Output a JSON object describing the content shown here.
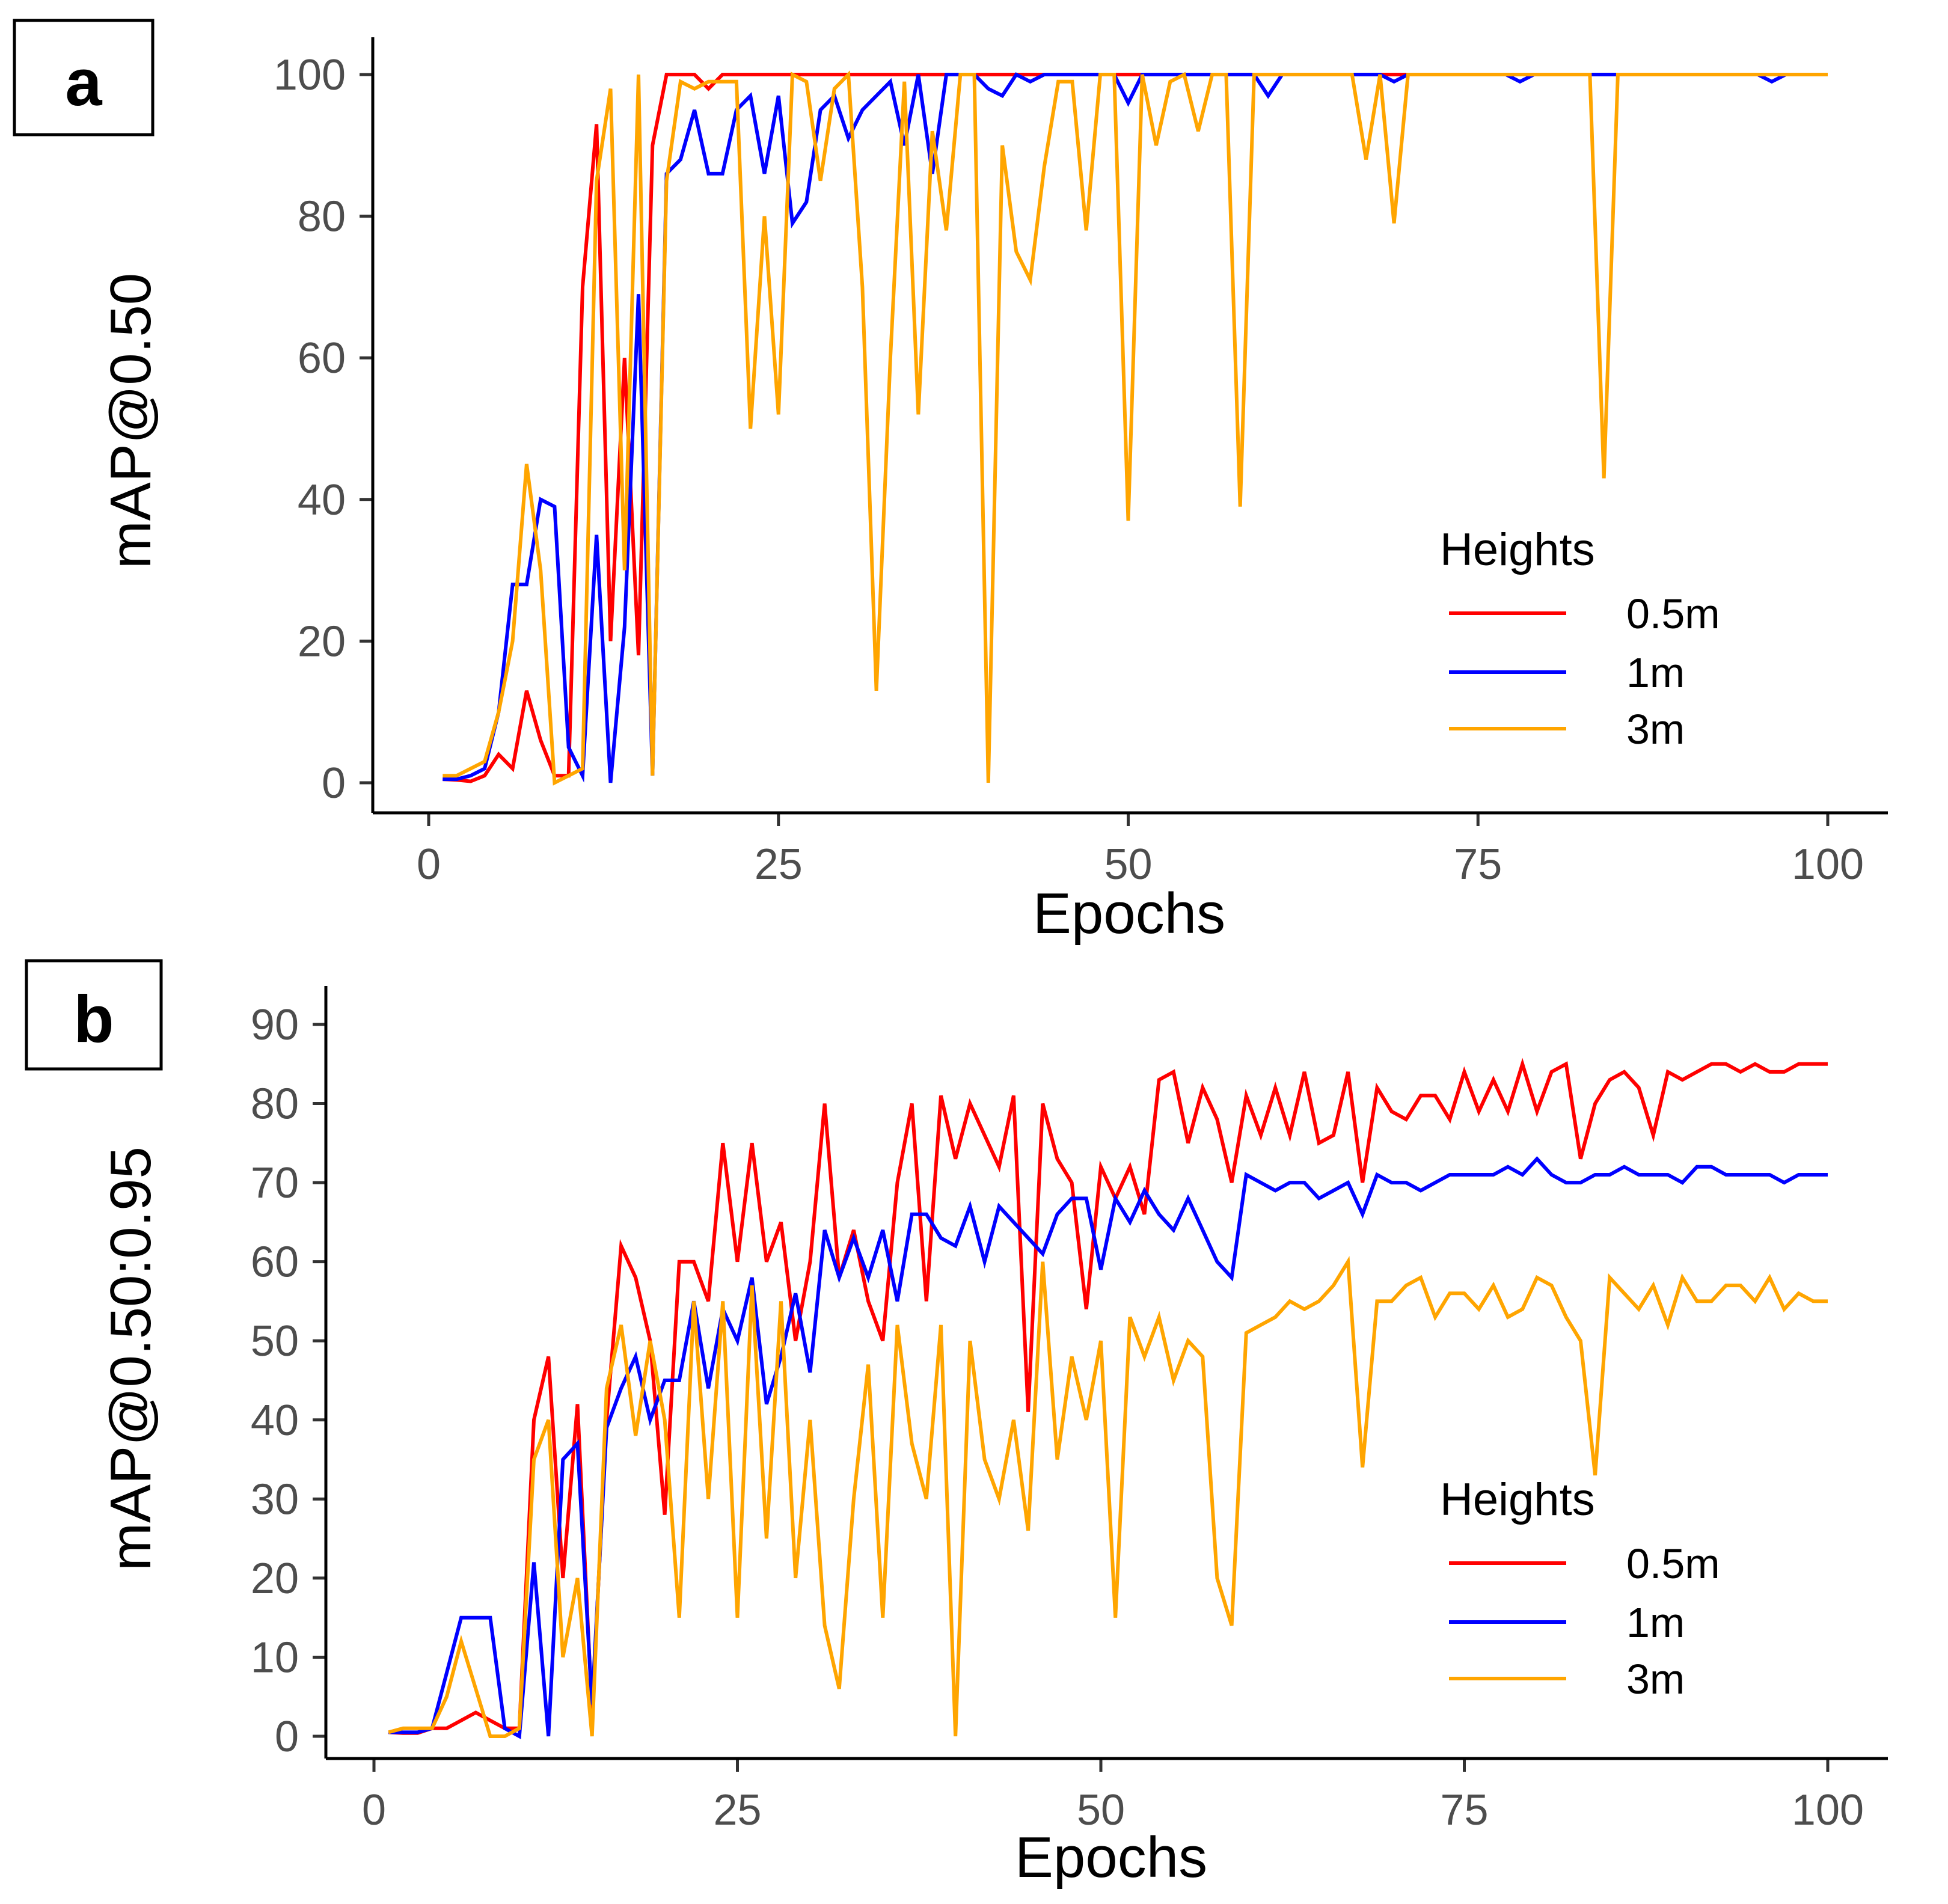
{
  "chart_data": [
    {
      "type": "line",
      "panel_label": "a",
      "xlabel": "Epochs",
      "ylabel": "mAP@0.50",
      "xlim": [
        0,
        100
      ],
      "ylim": [
        0,
        100
      ],
      "xticks": [
        0,
        25,
        50,
        75,
        100
      ],
      "yticks": [
        0,
        20,
        40,
        60,
        80,
        100
      ],
      "grid": false,
      "legend_title": "Heights",
      "legend_position": "bottom-right",
      "x": [
        1,
        2,
        3,
        4,
        5,
        6,
        7,
        8,
        9,
        10,
        11,
        12,
        13,
        14,
        15,
        16,
        17,
        18,
        19,
        20,
        21,
        22,
        23,
        24,
        25,
        26,
        27,
        28,
        29,
        30,
        31,
        32,
        33,
        34,
        35,
        36,
        37,
        38,
        39,
        40,
        41,
        42,
        43,
        44,
        45,
        46,
        47,
        48,
        49,
        50,
        51,
        52,
        53,
        54,
        55,
        56,
        57,
        58,
        59,
        60,
        61,
        62,
        63,
        64,
        65,
        66,
        67,
        68,
        69,
        70,
        71,
        72,
        73,
        74,
        75,
        76,
        77,
        78,
        79,
        80,
        81,
        82,
        83,
        84,
        85,
        86,
        87,
        88,
        89,
        90,
        91,
        92,
        93,
        94,
        95,
        96,
        97,
        98,
        99,
        100
      ],
      "series": [
        {
          "name": "0.5m",
          "color": "#ff0000",
          "values": [
            0.5,
            0.4,
            0.2,
            1,
            4,
            2,
            13,
            6,
            1,
            1,
            70,
            93,
            20,
            60,
            18,
            90,
            100,
            100,
            100,
            98,
            100,
            100,
            100,
            100,
            100,
            100,
            100,
            100,
            100,
            100,
            100,
            100,
            100,
            100,
            100,
            100,
            100,
            100,
            100,
            100,
            100,
            100,
            100,
            100,
            100,
            100,
            100,
            100,
            100,
            100,
            100,
            100,
            100,
            100,
            100,
            100,
            100,
            100,
            100,
            100,
            100,
            100,
            100,
            100,
            100,
            100,
            100,
            100,
            100,
            100,
            100,
            100,
            100,
            100,
            100,
            100,
            100,
            100,
            100,
            100,
            100,
            100,
            100,
            100,
            100,
            100,
            100,
            100,
            100,
            100,
            100,
            100,
            100,
            100,
            100,
            100,
            100,
            100,
            100,
            100
          ]
        },
        {
          "name": "1m",
          "color": "#0000ff",
          "values": [
            0.5,
            0.5,
            1,
            2,
            10,
            28,
            28,
            40,
            39,
            5,
            1,
            35,
            0,
            22,
            69,
            1,
            86,
            88,
            95,
            86,
            86,
            95,
            97,
            86,
            97,
            79,
            82,
            95,
            97,
            91,
            95,
            97,
            99,
            90,
            100,
            86,
            100,
            100,
            100,
            98,
            97,
            100,
            99,
            100,
            100,
            100,
            100,
            100,
            100,
            96,
            100,
            100,
            100,
            100,
            100,
            100,
            100,
            100,
            100,
            97,
            100,
            100,
            100,
            100,
            100,
            100,
            100,
            100,
            99,
            100,
            100,
            100,
            100,
            100,
            100,
            100,
            100,
            99,
            100,
            100,
            100,
            100,
            100,
            100,
            100,
            100,
            100,
            100,
            100,
            100,
            100,
            100,
            100,
            100,
            100,
            99,
            100,
            100,
            100,
            100
          ]
        },
        {
          "name": "3m",
          "color": "#ffa500",
          "values": [
            1,
            1,
            2,
            3,
            10,
            20,
            45,
            30,
            0,
            1,
            2,
            85,
            98,
            30,
            100,
            1,
            85,
            99,
            98,
            99,
            99,
            99,
            50,
            80,
            52,
            100,
            99,
            85,
            98,
            100,
            70,
            13,
            60,
            99,
            52,
            92,
            78,
            100,
            100,
            0,
            90,
            75,
            71,
            87,
            99,
            99,
            78,
            100,
            100,
            37,
            100,
            90,
            99,
            100,
            92,
            100,
            100,
            39,
            100,
            100,
            100,
            100,
            100,
            100,
            100,
            100,
            88,
            100,
            79,
            100,
            100,
            100,
            100,
            100,
            100,
            100,
            100,
            100,
            100,
            100,
            100,
            100,
            100,
            43,
            100,
            100,
            100,
            100,
            100,
            100,
            100,
            100,
            100,
            100,
            100,
            100,
            100,
            100,
            100,
            100
          ]
        }
      ]
    },
    {
      "type": "line",
      "panel_label": "b",
      "xlabel": "Epochs",
      "ylabel": "mAP@0.50:0.95",
      "xlim": [
        0,
        100
      ],
      "ylim": [
        0,
        90
      ],
      "xticks": [
        0,
        25,
        50,
        75,
        100
      ],
      "yticks": [
        0,
        10,
        20,
        30,
        40,
        50,
        60,
        70,
        80,
        90
      ],
      "grid": false,
      "legend_title": "Heights",
      "legend_position": "bottom-right",
      "x": [
        1,
        2,
        3,
        4,
        5,
        6,
        7,
        8,
        9,
        10,
        11,
        12,
        13,
        14,
        15,
        16,
        17,
        18,
        19,
        20,
        21,
        22,
        23,
        24,
        25,
        26,
        27,
        28,
        29,
        30,
        31,
        32,
        33,
        34,
        35,
        36,
        37,
        38,
        39,
        40,
        41,
        42,
        43,
        44,
        45,
        46,
        47,
        48,
        49,
        50,
        51,
        52,
        53,
        54,
        55,
        56,
        57,
        58,
        59,
        60,
        61,
        62,
        63,
        64,
        65,
        66,
        67,
        68,
        69,
        70,
        71,
        72,
        73,
        74,
        75,
        76,
        77,
        78,
        79,
        80,
        81,
        82,
        83,
        84,
        85,
        86,
        87,
        88,
        89,
        90,
        91,
        92,
        93,
        94,
        95,
        96,
        97,
        98,
        99,
        100
      ],
      "series": [
        {
          "name": "0.5m",
          "color": "#ff0000",
          "values": [
            0.5,
            0.4,
            0.4,
            1,
            1,
            2,
            3,
            2,
            1,
            1,
            40,
            48,
            20,
            42,
            3,
            40,
            62,
            58,
            50,
            28,
            60,
            60,
            55,
            75,
            60,
            75,
            60,
            65,
            50,
            60,
            80,
            58,
            64,
            55,
            50,
            70,
            80,
            55,
            81,
            73,
            80,
            76,
            72,
            81,
            41,
            80,
            73,
            70,
            54,
            72,
            68,
            72,
            66,
            83,
            84,
            75,
            82,
            78,
            70,
            81,
            76,
            82,
            76,
            84,
            75,
            76,
            84,
            70,
            82,
            79,
            78,
            81,
            81,
            78,
            84,
            79,
            83,
            79,
            85,
            79,
            84,
            85,
            73,
            80,
            83,
            84,
            82,
            76,
            84,
            83,
            84,
            85,
            85,
            84,
            85,
            84,
            84,
            85,
            85,
            85
          ]
        },
        {
          "name": "1m",
          "color": "#0000ff",
          "values": [
            0.5,
            0.5,
            0.5,
            1,
            8,
            15,
            15,
            15,
            1,
            0,
            22,
            0,
            35,
            37,
            4,
            39,
            44,
            48,
            40,
            45,
            45,
            55,
            44,
            54,
            50,
            58,
            42,
            48,
            56,
            46,
            64,
            58,
            63,
            58,
            64,
            55,
            66,
            66,
            63,
            62,
            67,
            60,
            67,
            65,
            63,
            61,
            66,
            68,
            68,
            59,
            68,
            65,
            69,
            66,
            64,
            68,
            64,
            60,
            58,
            71,
            70,
            69,
            70,
            70,
            68,
            69,
            70,
            66,
            71,
            70,
            70,
            69,
            70,
            71,
            71,
            71,
            71,
            72,
            71,
            73,
            71,
            70,
            70,
            71,
            71,
            72,
            71,
            71,
            71,
            70,
            72,
            72,
            71,
            71,
            71,
            71,
            70,
            71,
            71,
            71
          ]
        },
        {
          "name": "3m",
          "color": "#ffa500",
          "values": [
            0.5,
            1,
            1,
            1,
            5,
            12,
            6,
            0,
            0,
            1,
            35,
            40,
            10,
            20,
            0,
            44,
            52,
            38,
            50,
            40,
            15,
            55,
            30,
            55,
            15,
            57,
            25,
            55,
            20,
            40,
            14,
            6,
            30,
            47,
            15,
            52,
            37,
            30,
            52,
            0,
            50,
            35,
            30,
            40,
            26,
            60,
            35,
            48,
            40,
            50,
            15,
            53,
            48,
            53,
            45,
            50,
            48,
            20,
            14,
            51,
            52,
            53,
            55,
            54,
            55,
            57,
            60,
            34,
            55,
            55,
            57,
            58,
            53,
            56,
            56,
            54,
            57,
            53,
            54,
            58,
            57,
            53,
            50,
            33,
            58,
            56,
            54,
            57,
            52,
            58,
            55,
            55,
            57,
            57,
            55,
            58,
            54,
            56,
            55,
            55
          ]
        }
      ]
    }
  ]
}
